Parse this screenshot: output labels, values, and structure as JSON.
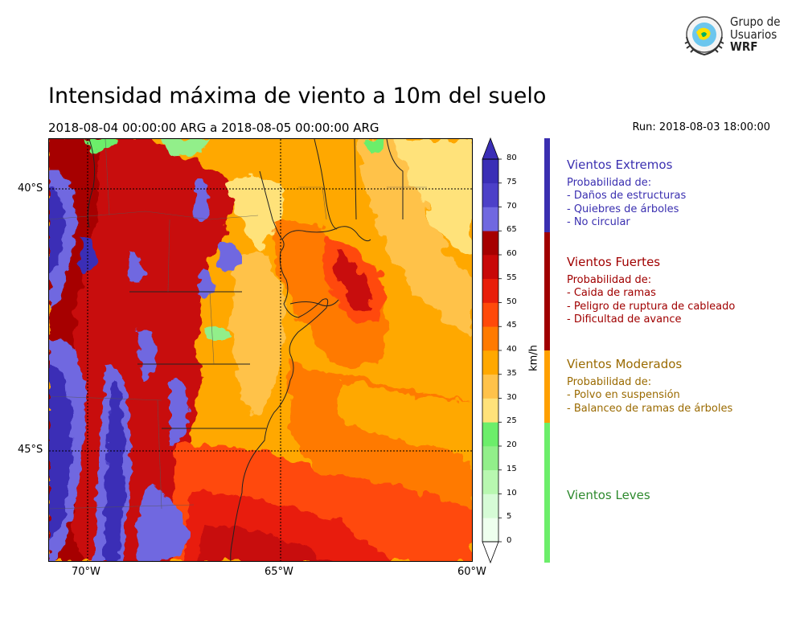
{
  "title": "Intensidad máxima de viento a 10m del suelo",
  "period": "2018-08-04 00:00:00 ARG  a  2018-08-05 00:00:00 ARG",
  "run": "Run: 2018-08-03 18:00:00",
  "logo": {
    "line1": "Grupo de",
    "line2": "Usuarios",
    "line3": "WRF"
  },
  "axes": {
    "lat_labels": [
      "40°S",
      "45°S"
    ],
    "lon_labels": [
      "70°W",
      "65°W",
      "60°W"
    ]
  },
  "colorbar": {
    "unit": "km/h",
    "ticks": [
      "0",
      "5",
      "10",
      "15",
      "20",
      "25",
      "30",
      "35",
      "40",
      "45",
      "50",
      "55",
      "60",
      "65",
      "70",
      "75",
      "80"
    ],
    "colors": [
      "#eeffee",
      "#d6fbd6",
      "#b8f7b0",
      "#92ef8a",
      "#6cee6a",
      "#ffe27a",
      "#ffc24a",
      "#ffa800",
      "#ff7a00",
      "#ff4a0a",
      "#e81e0a",
      "#c80808",
      "#a60000",
      "#7068e0",
      "#4c40c8",
      "#3a2eb6"
    ],
    "under_color": "#ffffff",
    "over_color": "#3a2eb6"
  },
  "categories": [
    {
      "title": "Vientos Extremos",
      "color": "#3a2fb0",
      "bar_color": "#3a2fb0",
      "lines": [
        " Probabilidad de:",
        "- Daños de estructuras",
        "- Quiebres de árboles",
        "- No circular"
      ]
    },
    {
      "title": "Vientos Fuertes",
      "color": "#a00000",
      "bar_color": "#a00000",
      "lines": [
        " Probabilidad de:",
        "- Caida de ramas",
        "- Peligro de ruptura de cableado",
        "- Dificultad de avance"
      ]
    },
    {
      "title": "Vientos Moderados",
      "color": "#9a6a00",
      "bar_color": "#ffa000",
      "lines": [
        " Probabilidad de:",
        "- Polvo en suspensión",
        "- Balanceo de ramas de árboles"
      ]
    },
    {
      "title": "Vientos Leves",
      "color": "#2e8a2e",
      "bar_color": "#6cee6a",
      "lines": []
    }
  ],
  "map_colors": {
    "very_high": "#3a2eb6",
    "high2": "#7068e0",
    "strong": "#a60000",
    "strong2": "#c80808",
    "red": "#e81e0a",
    "orange_red": "#ff4a0a",
    "orange": "#ff7a00",
    "amber": "#ffa800",
    "light_orange": "#ffc24a",
    "yellow": "#ffe27a",
    "green": "#6cee6a",
    "light_green": "#92ef8a"
  }
}
